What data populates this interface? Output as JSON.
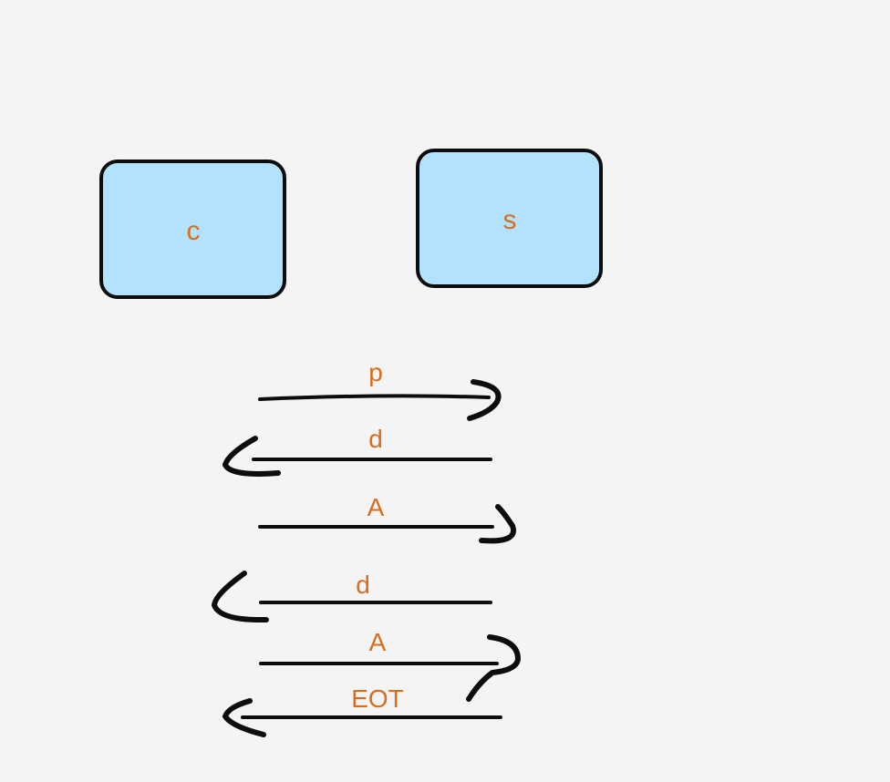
{
  "nodes": {
    "client": {
      "label": "c",
      "fill": "#b3e2fe"
    },
    "server": {
      "label": "s",
      "fill": "#b3e2fe"
    }
  },
  "messages": [
    {
      "label": "p",
      "direction": "client-to-server"
    },
    {
      "label": "d",
      "direction": "server-to-client"
    },
    {
      "label": "A",
      "direction": "client-to-server"
    },
    {
      "label": "d",
      "direction": "server-to-client"
    },
    {
      "label": "A",
      "direction": "client-to-server"
    },
    {
      "label": "EOT",
      "direction": "server-to-client"
    }
  ],
  "colors": {
    "background": "#f4f4f4",
    "box_fill": "#b3e2fe",
    "stroke": "#0d0d0d",
    "label": "#d66d1f"
  }
}
